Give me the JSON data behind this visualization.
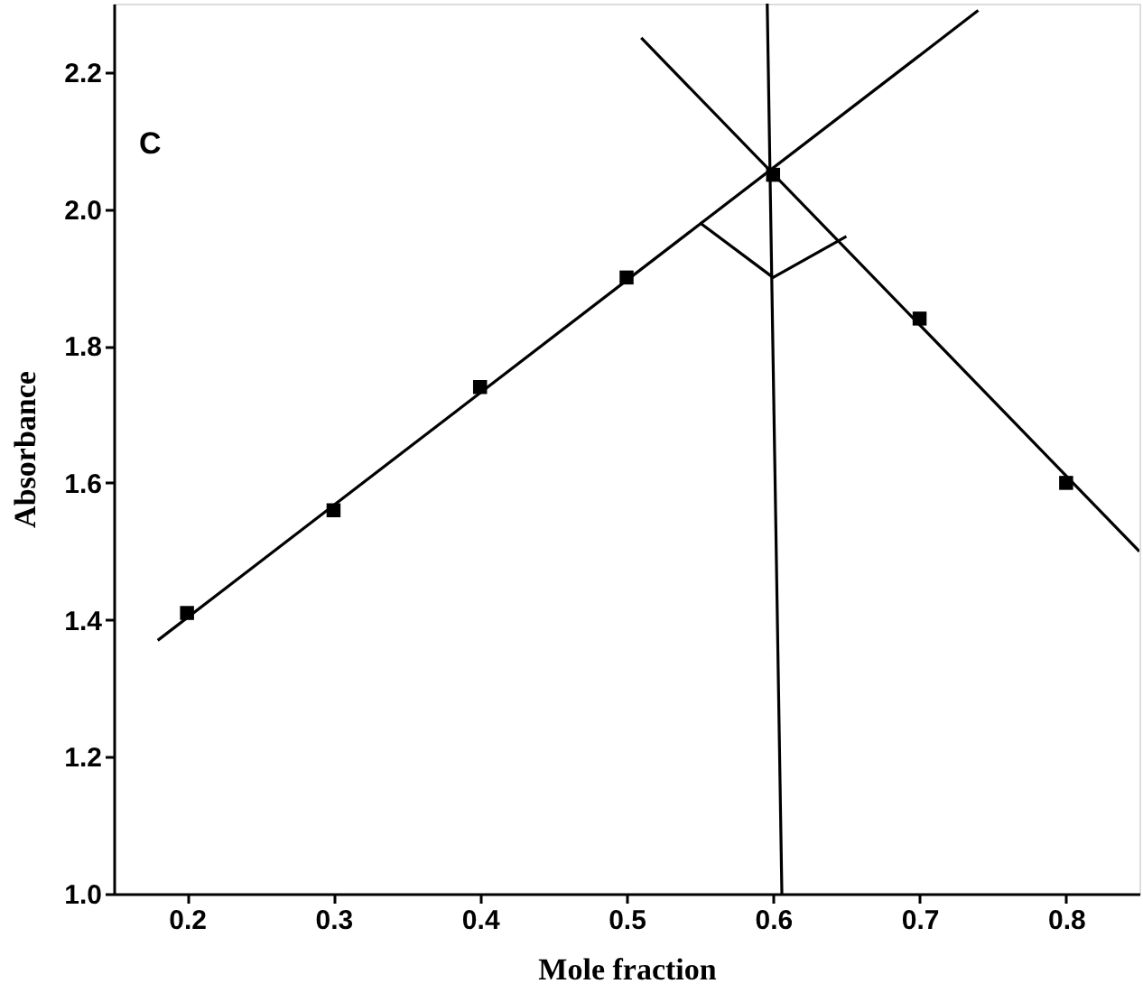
{
  "chart_data": {
    "type": "scatter",
    "xlabel": "Mole fraction",
    "ylabel": "Absorbance",
    "annotations": [
      "C"
    ],
    "xlim": [
      0.15,
      0.85
    ],
    "ylim": [
      1.0,
      2.3
    ],
    "xticks": [
      0.2,
      0.3,
      0.4,
      0.5,
      0.6,
      0.7,
      0.8
    ],
    "yticks": [
      {
        "value": 1,
        "label": "1.0"
      },
      1.2,
      1.4,
      1.6,
      1.8,
      {
        "value": 2,
        "label": "2.0"
      },
      2.2
    ],
    "grid": false,
    "marker": "square",
    "series": [
      {
        "color": "#000000",
        "x": [
          0.2,
          0.3,
          0.4,
          0.5,
          0.6,
          0.7,
          0.8
        ],
        "values": [
          1.41,
          1.56,
          1.74,
          1.9,
          2.05,
          1.84,
          1.6
        ]
      },
      {
        "type": "line",
        "color": "#000000",
        "marker": "none",
        "x": [
          0.18,
          0.74
        ],
        "values": [
          1.37,
          2.29
        ]
      },
      {
        "type": "line",
        "color": "#000000",
        "marker": "none",
        "x": [
          0.51,
          0.85
        ],
        "values": [
          2.25,
          1.5
        ]
      },
      {
        "type": "line",
        "color": "#000000",
        "marker": "none",
        "x": [
          0.596,
          0.606
        ],
        "values": [
          2.3,
          1.0
        ]
      },
      {
        "type": "line",
        "color": "#000000",
        "marker": "none",
        "x": [
          0.55,
          0.6,
          0.65
        ],
        "values": [
          1.98,
          1.9,
          1.96
        ]
      }
    ]
  }
}
